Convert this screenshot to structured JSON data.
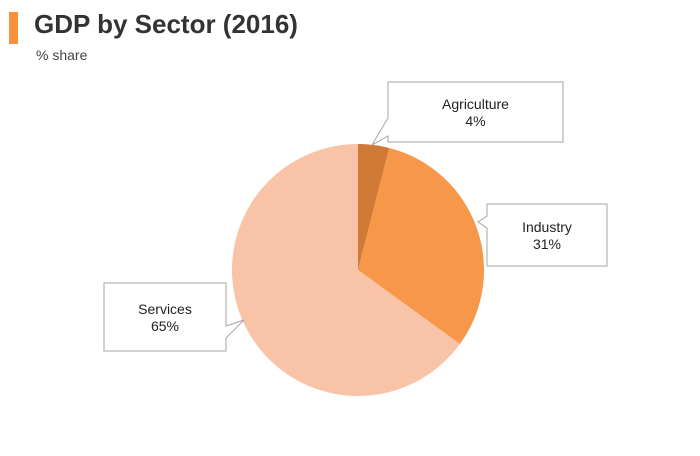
{
  "header": {
    "title": "GDP by Sector (2016)",
    "subtitle": "% share"
  },
  "colors": {
    "accent": "#F7923A",
    "services": "#F9C3A7",
    "industry": "#F7974A",
    "agriculture": "#D07A38"
  },
  "chart_data": {
    "type": "pie",
    "title": "GDP by Sector (2016)",
    "subtitle": "% share",
    "categories": [
      "Agriculture",
      "Industry",
      "Services"
    ],
    "values": [
      4,
      31,
      65
    ],
    "value_labels": [
      "4%",
      "31%",
      "65%"
    ],
    "colors": [
      "#D07A38",
      "#F7974A",
      "#F9C3A7"
    ],
    "start_angle_deg": 0,
    "direction": "clockwise",
    "legend": "none"
  }
}
